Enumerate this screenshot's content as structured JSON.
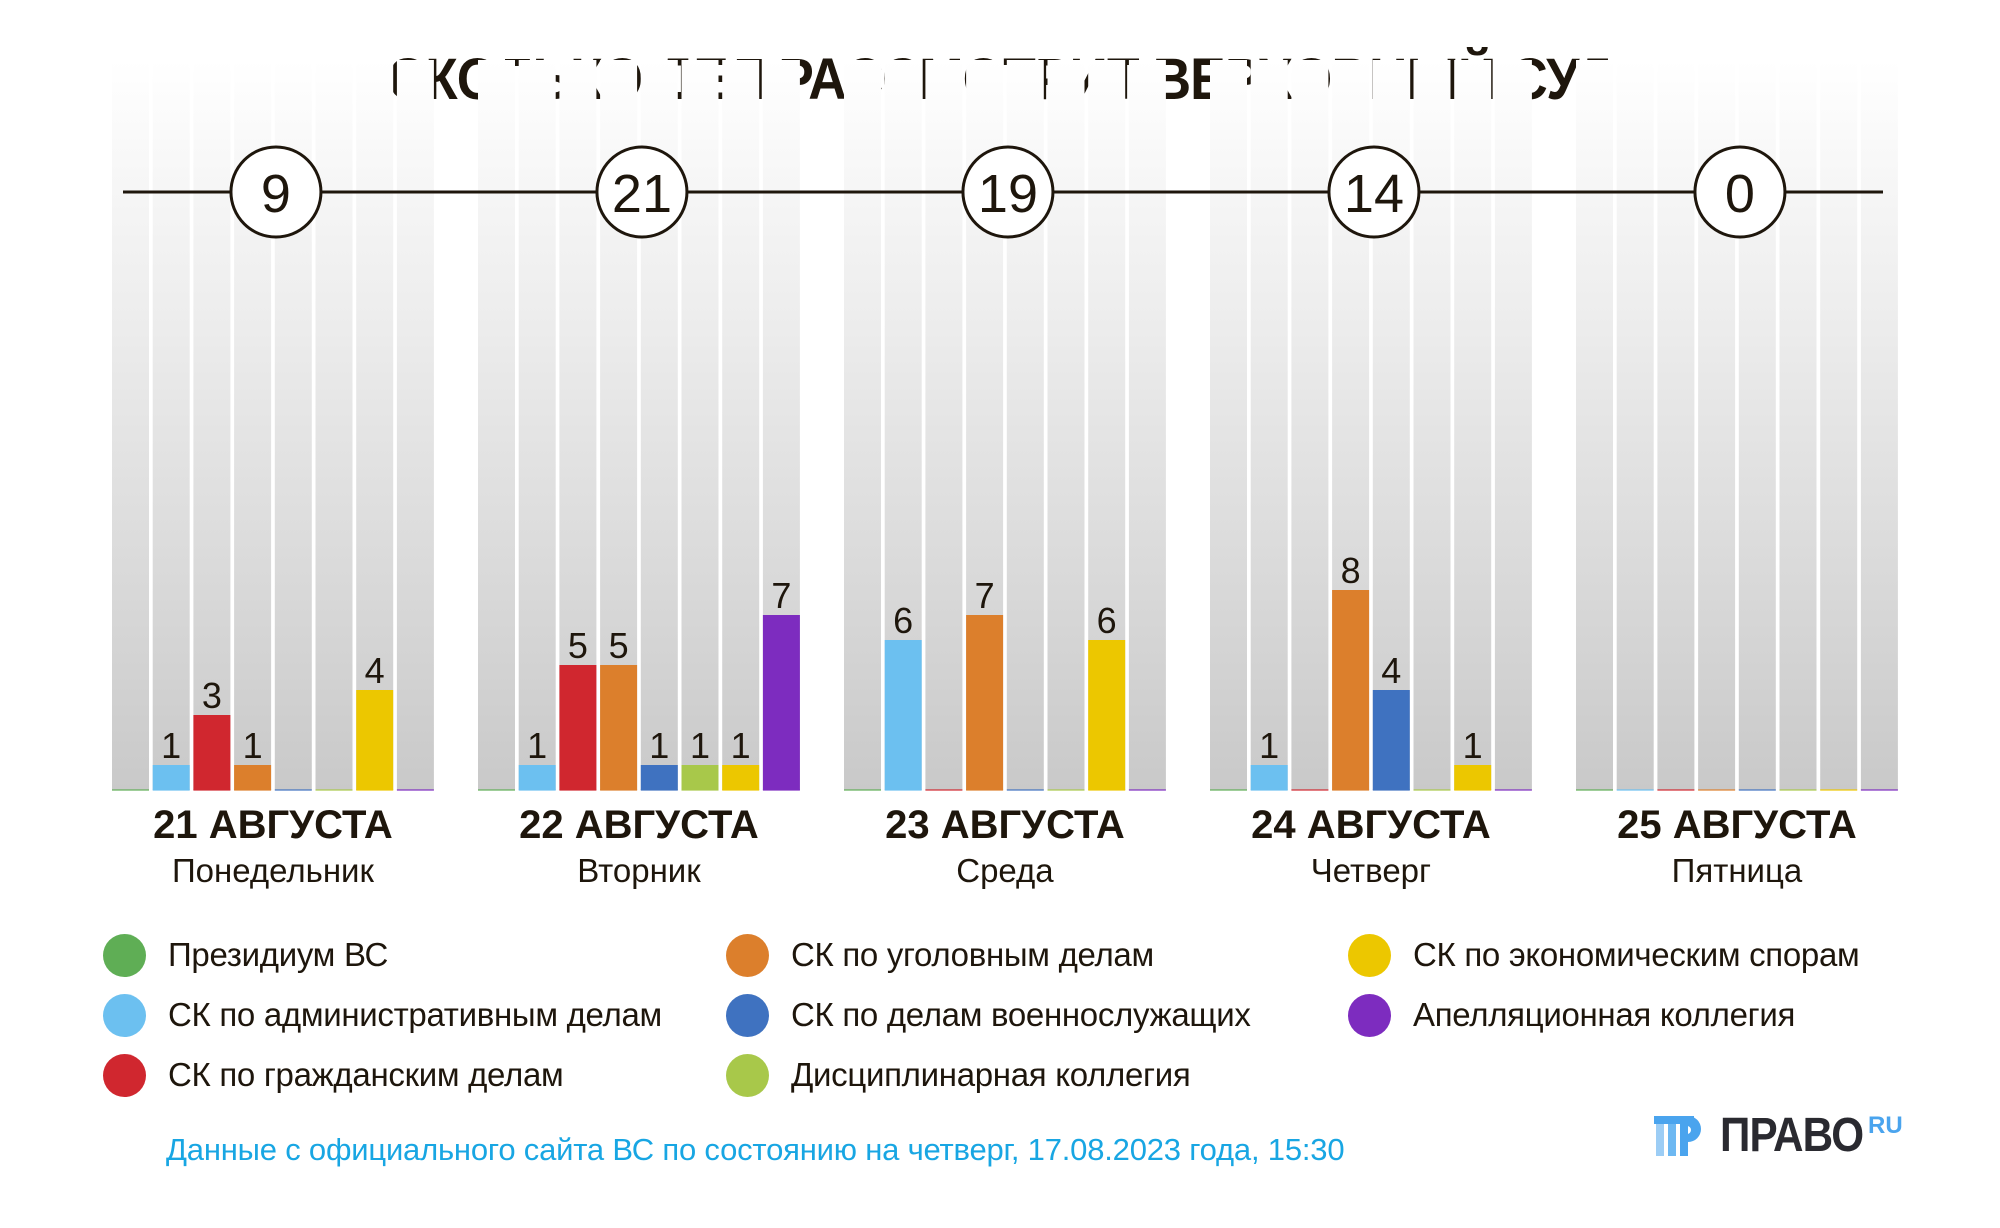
{
  "header": {
    "title": "СКОЛЬКО ДЕЛ РАССМОТРИТ ВЕРХОВНЫЙ СУД"
  },
  "chart_data": {
    "type": "bar",
    "title": "СКОЛЬКО ДЕЛ РАССМОТРИТ ВЕРХОВНЫЙ СУД",
    "xlabel": "",
    "ylabel": "",
    "ylim": [
      0,
      29
    ],
    "grid": false,
    "legend_position": "bottom",
    "categories": [
      {
        "date": "21 АВГУСТА",
        "weekday": "Понедельник",
        "total": "9"
      },
      {
        "date": "22 АВГУСТА",
        "weekday": "Вторник",
        "total": "21"
      },
      {
        "date": "23 АВГУСТА",
        "weekday": "Среда",
        "total": "19"
      },
      {
        "date": "24 АВГУСТА",
        "weekday": "Четверг",
        "total": "14"
      },
      {
        "date": "25 АВГУСТА",
        "weekday": "Пятница",
        "total": "0"
      }
    ],
    "series": [
      {
        "name": "Президиум ВС",
        "color": "#5fae55",
        "values": [
          0,
          0,
          0,
          0,
          0
        ]
      },
      {
        "name": "СК по административным делам",
        "color": "#6cc0f0",
        "values": [
          1,
          1,
          6,
          1,
          0
        ]
      },
      {
        "name": "СК по гражданским делам",
        "color": "#d0272f",
        "values": [
          3,
          5,
          0,
          0,
          0
        ]
      },
      {
        "name": "СК по уголовным делам",
        "color": "#dc7f2c",
        "values": [
          1,
          5,
          7,
          8,
          0
        ]
      },
      {
        "name": "СК по делам военнослужащих",
        "color": "#3f72c0",
        "values": [
          0,
          1,
          0,
          4,
          0
        ]
      },
      {
        "name": "Дисциплинарная коллегия",
        "color": "#a8c84a",
        "values": [
          0,
          1,
          0,
          0,
          0
        ]
      },
      {
        "name": "СК по экономическим спорам",
        "color": "#ecc700",
        "values": [
          4,
          1,
          6,
          1,
          0
        ]
      },
      {
        "name": "Апелляционная коллегия",
        "color": "#7d2cbf",
        "values": [
          0,
          7,
          0,
          0,
          0
        ]
      }
    ]
  },
  "legend": {
    "items": [
      {
        "label": "Президиум ВС",
        "color": "#5fae55"
      },
      {
        "label": "СК по административным делам",
        "color": "#6cc0f0"
      },
      {
        "label": "СК по гражданским делам",
        "color": "#d0272f"
      },
      {
        "label": "СК по уголовным делам",
        "color": "#dc7f2c"
      },
      {
        "label": "СК по делам военнослужащих",
        "color": "#3f72c0"
      },
      {
        "label": "Дисциплинарная коллегия",
        "color": "#a8c84a"
      },
      {
        "label": "СК по экономическим спорам",
        "color": "#ecc700"
      },
      {
        "label": "Апелляционная коллегия",
        "color": "#7d2cbf"
      }
    ]
  },
  "footer": {
    "source_note": "Данные с официального сайта ВС по состоянию на четверг, 17.08.2023 года, 15:30",
    "logo_word": "ПРАВО",
    "logo_suffix": "RU",
    "logo_icon": "pravo-logo-icon",
    "logo_color": "#4aa4ee"
  }
}
